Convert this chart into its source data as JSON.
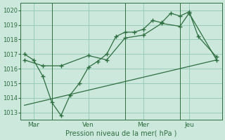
{
  "bg_color": "#cce8dd",
  "grid_color": "#99ccbb",
  "line_color": "#2d6e3e",
  "xlabel": "Pression niveau de la mer( hPa )",
  "ylim": [
    1012.5,
    1020.5
  ],
  "yticks": [
    1013,
    1014,
    1015,
    1016,
    1017,
    1018,
    1019,
    1020
  ],
  "day_labels": [
    "Mar",
    "Ven",
    "Mer",
    "Jeu"
  ],
  "day_positions": [
    0.5,
    3.5,
    6.5,
    9.0
  ],
  "xlim": [
    -0.2,
    10.8
  ],
  "line1_x": [
    0.0,
    0.5,
    1.0,
    1.5,
    2.0,
    2.5,
    3.0,
    3.5,
    4.0,
    4.5,
    5.0,
    5.5,
    6.0,
    6.5,
    7.0,
    7.5,
    8.0,
    8.5,
    9.0,
    9.5,
    10.5
  ],
  "line1_y": [
    1017.0,
    1016.6,
    1015.5,
    1013.7,
    1012.8,
    1014.2,
    1015.0,
    1016.1,
    1016.5,
    1017.0,
    1018.2,
    1018.5,
    1018.5,
    1018.7,
    1019.3,
    1019.15,
    1019.8,
    1019.6,
    1019.9,
    1018.2,
    1016.8
  ],
  "line2_x": [
    0.0,
    1.0,
    2.0,
    3.5,
    4.5,
    5.5,
    6.5,
    7.5,
    8.5,
    9.0,
    10.5
  ],
  "line2_y": [
    1016.6,
    1016.2,
    1016.2,
    1016.9,
    1016.6,
    1018.1,
    1018.3,
    1019.1,
    1018.9,
    1019.8,
    1016.6
  ],
  "line3_x": [
    0.0,
    10.5
  ],
  "line3_y": [
    1013.5,
    1016.6
  ],
  "vline_positions": [
    1.5,
    5.5,
    8.5
  ]
}
